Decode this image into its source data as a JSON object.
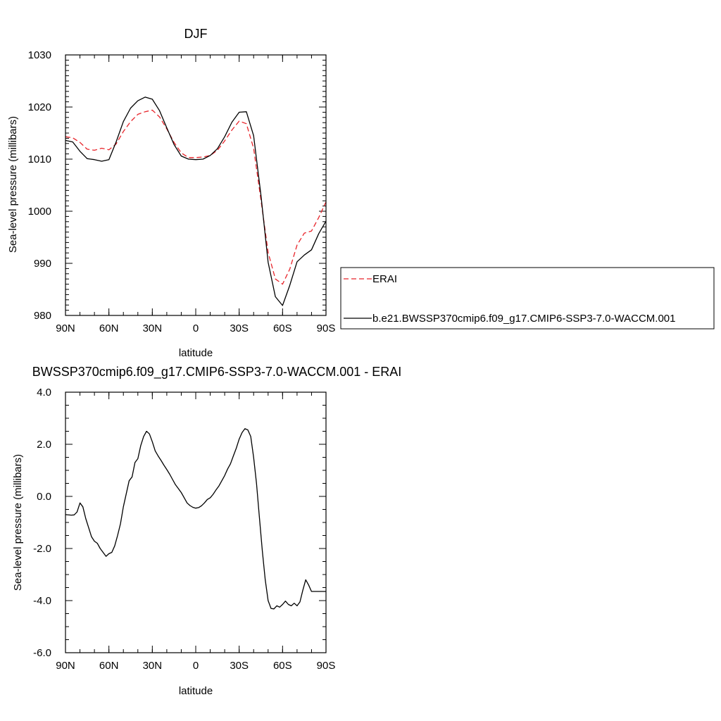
{
  "chart_data": [
    {
      "type": "line",
      "title": "DJF",
      "xlabel": "latitude",
      "ylabel": "Sea-level pressure (millibars)",
      "xlim": [
        90,
        -90
      ],
      "ylim": [
        980,
        1030
      ],
      "xticks": [
        {
          "value": 90,
          "label": "90N"
        },
        {
          "value": 60,
          "label": "60N"
        },
        {
          "value": 30,
          "label": "30N"
        },
        {
          "value": 0,
          "label": "0"
        },
        {
          "value": -30,
          "label": "30S"
        },
        {
          "value": -60,
          "label": "60S"
        },
        {
          "value": -90,
          "label": "90S"
        }
      ],
      "yticks": [
        {
          "value": 1030,
          "label": "1030"
        },
        {
          "value": 1020,
          "label": "1020"
        },
        {
          "value": 1010,
          "label": "1010"
        },
        {
          "value": 1000,
          "label": "1000"
        },
        {
          "value": 990,
          "label": "990"
        },
        {
          "value": 980,
          "label": "980"
        }
      ],
      "legend_position": "right",
      "series": [
        {
          "name": "ERAI",
          "color": "#e8242a",
          "dash": "dashed",
          "x": [
            90,
            85,
            80,
            75,
            70,
            65,
            60,
            55,
            50,
            45,
            40,
            35,
            30,
            25,
            20,
            15,
            10,
            5,
            0,
            -5,
            -10,
            -15,
            -20,
            -25,
            -30,
            -35,
            -40,
            -45,
            -50,
            -55,
            -60,
            -65,
            -70,
            -75,
            -80,
            -85,
            -90
          ],
          "values": [
            1014.3,
            1014.1,
            1013.2,
            1011.9,
            1011.7,
            1012.1,
            1011.8,
            1012.9,
            1015.3,
            1017.2,
            1018.6,
            1019.1,
            1019.4,
            1018.1,
            1015.8,
            1013.2,
            1011.2,
            1010.3,
            1010.3,
            1010.4,
            1010.7,
            1011.7,
            1013.5,
            1015.6,
            1017.3,
            1016.8,
            1012.1,
            1002.3,
            992.1,
            987.0,
            986.0,
            988.9,
            993.5,
            995.8,
            996.2,
            998.8,
            1001.8
          ]
        },
        {
          "name": "b.e21.BWSSP370cmip6.f09_g17.CMIP6-SSP3-7.0-WACCM.001",
          "color": "#000000",
          "dash": "solid",
          "x": [
            90,
            85,
            80,
            75,
            70,
            65,
            60,
            55,
            50,
            45,
            40,
            35,
            30,
            25,
            20,
            15,
            10,
            5,
            0,
            -5,
            -10,
            -15,
            -20,
            -25,
            -30,
            -35,
            -40,
            -45,
            -50,
            -55,
            -60,
            -65,
            -70,
            -75,
            -80,
            -85,
            -90
          ],
          "values": [
            1013.6,
            1013.3,
            1011.5,
            1010.1,
            1009.9,
            1009.6,
            1009.9,
            1013.3,
            1017.2,
            1019.8,
            1021.2,
            1021.9,
            1021.5,
            1019.3,
            1016.0,
            1012.8,
            1010.6,
            1010.0,
            1009.9,
            1010.0,
            1010.7,
            1012.0,
            1014.3,
            1017.1,
            1019.0,
            1019.1,
            1014.5,
            1003.2,
            990.2,
            983.6,
            981.9,
            985.8,
            990.3,
            991.6,
            992.6,
            995.7,
            998.1
          ]
        }
      ]
    },
    {
      "type": "line",
      "title": "BWSSP370cmip6.f09_g17.CMIP6-SSP3-7.0-WACCM.001 - ERAI",
      "xlabel": "latitude",
      "ylabel": "Sea-level pressure (millibars)",
      "xlim": [
        90,
        -90
      ],
      "ylim": [
        -6,
        4
      ],
      "xticks": [
        {
          "value": 90,
          "label": "90N"
        },
        {
          "value": 60,
          "label": "60N"
        },
        {
          "value": 30,
          "label": "30N"
        },
        {
          "value": 0,
          "label": "0"
        },
        {
          "value": -30,
          "label": "30S"
        },
        {
          "value": -60,
          "label": "60S"
        },
        {
          "value": -90,
          "label": "90S"
        }
      ],
      "yticks": [
        {
          "value": 4,
          "label": "4.0"
        },
        {
          "value": 2,
          "label": "2.0"
        },
        {
          "value": 0,
          "label": "0.0"
        },
        {
          "value": -2,
          "label": "-2.0"
        },
        {
          "value": -4,
          "label": "-4.0"
        },
        {
          "value": -6,
          "label": "-6.0"
        }
      ],
      "series": [
        {
          "color": "#000000",
          "dash": "solid",
          "x": [
            90,
            86,
            84,
            82,
            80,
            78,
            76,
            74,
            72,
            70,
            68,
            66,
            64,
            62,
            60,
            58,
            56,
            54,
            52,
            50,
            48,
            46,
            44,
            42,
            40,
            38,
            36,
            34,
            32,
            30,
            28,
            26,
            24,
            22,
            20,
            18,
            16,
            14,
            12,
            10,
            8,
            6,
            4,
            2,
            0,
            -2,
            -4,
            -6,
            -8,
            -10,
            -12,
            -14,
            -16,
            -18,
            -20,
            -22,
            -24,
            -26,
            -28,
            -30,
            -32,
            -34,
            -36,
            -38,
            -40,
            -42,
            -44,
            -46,
            -48,
            -50,
            -52,
            -54,
            -56,
            -58,
            -60,
            -62,
            -64,
            -66,
            -68,
            -70,
            -72,
            -74,
            -76,
            -78,
            -80,
            -82,
            -84,
            -86,
            -88,
            -90
          ],
          "values": [
            -0.7,
            -0.72,
            -0.71,
            -0.6,
            -0.25,
            -0.4,
            -0.85,
            -1.2,
            -1.55,
            -1.72,
            -1.8,
            -2.0,
            -2.15,
            -2.3,
            -2.2,
            -2.15,
            -1.9,
            -1.5,
            -1.05,
            -0.4,
            0.1,
            0.6,
            0.75,
            1.3,
            1.45,
            1.95,
            2.3,
            2.5,
            2.4,
            2.1,
            1.75,
            1.55,
            1.38,
            1.2,
            1.03,
            0.85,
            0.65,
            0.45,
            0.3,
            0.15,
            -0.05,
            -0.25,
            -0.35,
            -0.42,
            -0.45,
            -0.43,
            -0.36,
            -0.25,
            -0.12,
            -0.05,
            0.08,
            0.25,
            0.4,
            0.6,
            0.8,
            1.05,
            1.25,
            1.55,
            1.85,
            2.2,
            2.45,
            2.6,
            2.55,
            2.3,
            1.5,
            0.5,
            -0.8,
            -2.1,
            -3.2,
            -4.0,
            -4.3,
            -4.32,
            -4.2,
            -4.25,
            -4.15,
            -4.02,
            -4.15,
            -4.2,
            -4.1,
            -4.2,
            -4.05,
            -3.6,
            -3.2,
            -3.4,
            -3.65,
            -3.65,
            -3.65,
            -3.65,
            -3.65,
            -3.65
          ]
        }
      ]
    }
  ]
}
